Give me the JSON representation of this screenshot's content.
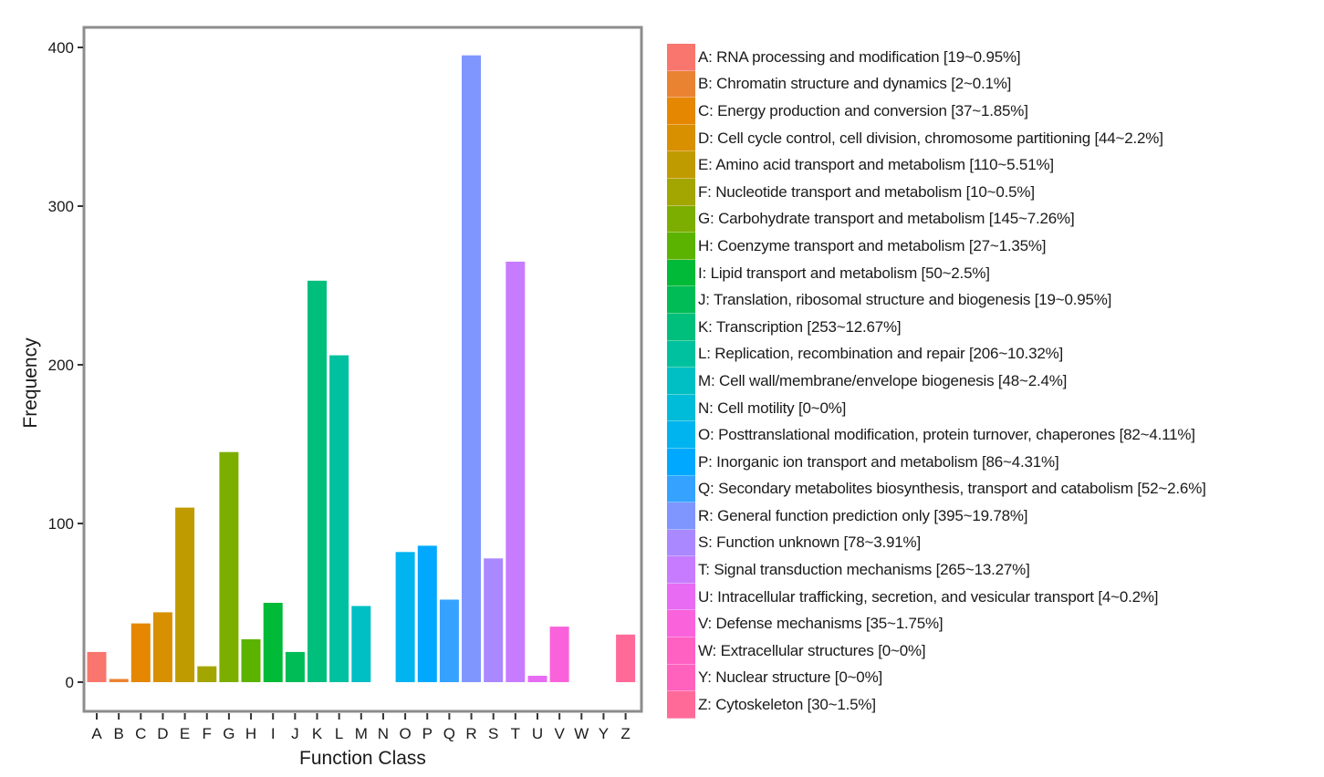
{
  "chart_data": {
    "type": "bar",
    "title": "",
    "xlabel": "Function Class",
    "ylabel": "Frequency",
    "ylim": [
      0,
      400
    ],
    "yticks": [
      0,
      100,
      200,
      300,
      400
    ],
    "grid": false,
    "legend_position": "right",
    "categories": [
      "A",
      "B",
      "C",
      "D",
      "E",
      "F",
      "G",
      "H",
      "I",
      "J",
      "K",
      "L",
      "M",
      "N",
      "O",
      "P",
      "Q",
      "R",
      "S",
      "T",
      "U",
      "V",
      "W",
      "Y",
      "Z"
    ],
    "values": [
      19,
      2,
      37,
      44,
      110,
      10,
      145,
      27,
      50,
      19,
      253,
      206,
      48,
      0,
      82,
      86,
      52,
      395,
      78,
      265,
      4,
      35,
      0,
      0,
      30
    ],
    "colors": [
      "#F8766D",
      "#EA8331",
      "#E58700",
      "#D89000",
      "#C09B00",
      "#A3A500",
      "#7CAE00",
      "#5BB300",
      "#00BA38",
      "#00BC56",
      "#00BF7D",
      "#00C19F",
      "#00BFC4",
      "#00BCD8",
      "#00B4F0",
      "#00A9FF",
      "#35A2FF",
      "#7F96FF",
      "#AA88FF",
      "#C77CFF",
      "#E76BF3",
      "#FA62DB",
      "#FF61C3",
      "#FF62BC",
      "#FF6A98"
    ],
    "legend": [
      "A: RNA processing and modification [19~0.95%]",
      "B: Chromatin structure and dynamics [2~0.1%]",
      "C: Energy production and conversion [37~1.85%]",
      "D: Cell cycle control, cell division, chromosome partitioning [44~2.2%]",
      "E: Amino acid transport and metabolism [110~5.51%]",
      "F: Nucleotide transport and metabolism [10~0.5%]",
      "G: Carbohydrate transport and metabolism [145~7.26%]",
      "H: Coenzyme transport and metabolism [27~1.35%]",
      "I: Lipid transport and metabolism [50~2.5%]",
      "J: Translation, ribosomal structure and biogenesis [19~0.95%]",
      "K: Transcription [253~12.67%]",
      "L: Replication, recombination and repair [206~10.32%]",
      "M: Cell wall/membrane/envelope biogenesis [48~2.4%]",
      "N: Cell motility [0~0%]",
      "O: Posttranslational modification, protein turnover, chaperones [82~4.11%]",
      "P: Inorganic ion transport and metabolism [86~4.31%]",
      "Q: Secondary metabolites biosynthesis, transport and catabolism [52~2.6%]",
      "R: General function prediction only [395~19.78%]",
      "S: Function unknown [78~3.91%]",
      "T: Signal transduction mechanisms [265~13.27%]",
      "U: Intracellular trafficking, secretion, and vesicular transport [4~0.2%]",
      "V: Defense mechanisms [35~1.75%]",
      "W: Extracellular structures [0~0%]",
      "Y: Nuclear structure [0~0%]",
      "Z: Cytoskeleton [30~1.5%]"
    ]
  }
}
